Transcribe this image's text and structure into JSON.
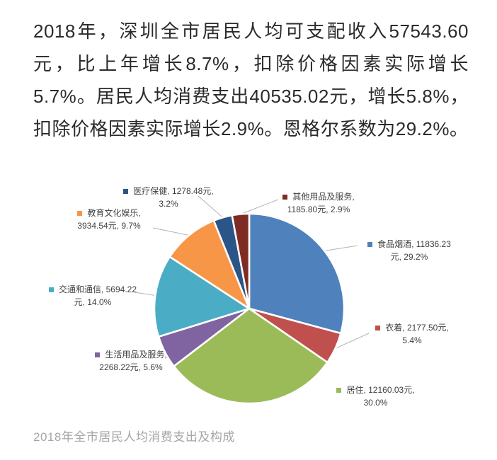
{
  "paragraph": "2018年，深圳全市居民人均可支配收入57543.60元，比上年增长8.7%，扣除价格因素实际增长5.7%。居民人均消费支出40535.02元，增长5.8%，扣除价格因素实际增长2.9%。恩格尔系数为29.2%。",
  "caption": "2018年全市居民人均消费支出及构成",
  "chart_data": {
    "type": "pie",
    "title": "2018年全市居民人均消费支出及构成",
    "unit": "元",
    "start_angle_deg": 0,
    "direction": "clockwise",
    "legend_position": "data-labels-with-leader-lines",
    "slices": [
      {
        "name": "食品烟酒",
        "value": 11836.23,
        "pct": 29.2,
        "color": "#4F81BD",
        "label_line1": "食品烟酒, 11836.23",
        "label_line2": "元, 29.2%"
      },
      {
        "name": "衣着",
        "value": 2177.5,
        "pct": 5.4,
        "color": "#C0504D",
        "label_line1": "衣着, 2177.50元,",
        "label_line2": "5.4%"
      },
      {
        "name": "居住",
        "value": 12160.03,
        "pct": 30.0,
        "color": "#9BBB59",
        "label_line1": "居住, 12160.03元,",
        "label_line2": "30.0%"
      },
      {
        "name": "生活用品及服务",
        "value": 2268.22,
        "pct": 5.6,
        "color": "#8064A2",
        "label_line1": "生活用品及服务,",
        "label_line2": "2268.22元, 5.6%"
      },
      {
        "name": "交通和通信",
        "value": 5694.22,
        "pct": 14.0,
        "color": "#4BACC6",
        "label_line1": "交通和通信, 5694.22",
        "label_line2": "元, 14.0%"
      },
      {
        "name": "教育文化娱乐",
        "value": 3934.54,
        "pct": 9.7,
        "color": "#F79646",
        "label_line1": "教育文化娱乐,",
        "label_line2": "3934.54元, 9.7%"
      },
      {
        "name": "医疗保健",
        "value": 1278.48,
        "pct": 3.2,
        "color": "#2C5587",
        "label_line1": "医疗保健, 1278.48元,",
        "label_line2": "3.2%"
      },
      {
        "name": "其他用品及服务",
        "value": 1185.8,
        "pct": 2.9,
        "color": "#7F2C24",
        "label_line1": "其他用品及服务,",
        "label_line2": "1185.80元, 2.9%"
      }
    ],
    "leader_line_color": "#b3b3b3",
    "slice_gap_color": "#ffffff"
  }
}
